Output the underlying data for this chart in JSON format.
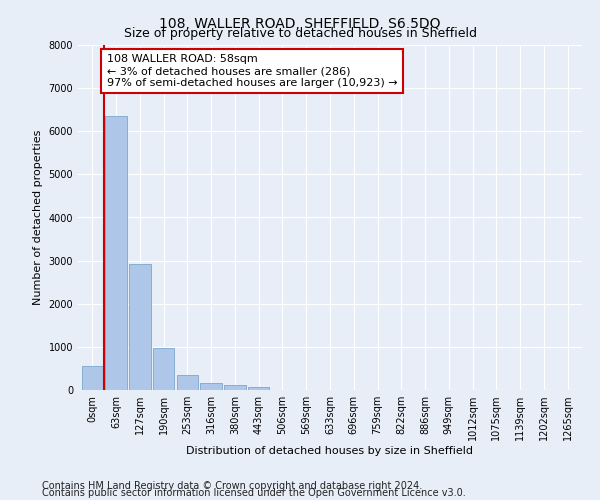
{
  "title": "108, WALLER ROAD, SHEFFIELD, S6 5DQ",
  "subtitle": "Size of property relative to detached houses in Sheffield",
  "xlabel": "Distribution of detached houses by size in Sheffield",
  "ylabel": "Number of detached properties",
  "footer_line1": "Contains HM Land Registry data © Crown copyright and database right 2024.",
  "footer_line2": "Contains public sector information licensed under the Open Government Licence v3.0.",
  "bar_categories": [
    "0sqm",
    "63sqm",
    "127sqm",
    "190sqm",
    "253sqm",
    "316sqm",
    "380sqm",
    "443sqm",
    "506sqm",
    "569sqm",
    "633sqm",
    "696sqm",
    "759sqm",
    "822sqm",
    "886sqm",
    "949sqm",
    "1012sqm",
    "1075sqm",
    "1139sqm",
    "1202sqm",
    "1265sqm"
  ],
  "bar_values": [
    550,
    6350,
    2920,
    970,
    340,
    165,
    110,
    75,
    0,
    0,
    0,
    0,
    0,
    0,
    0,
    0,
    0,
    0,
    0,
    0,
    0
  ],
  "bar_color": "#aec6e8",
  "bar_edge_color": "#7ba7cf",
  "ylim": [
    0,
    8000
  ],
  "annotation_text": "108 WALLER ROAD: 58sqm\n← 3% of detached houses are smaller (286)\n97% of semi-detached houses are larger (10,923) →",
  "vline_x": 0.5,
  "vline_color": "#cc0000",
  "box_facecolor": "#ffffff",
  "box_edgecolor": "#cc0000",
  "background_color": "#e8eef8",
  "grid_color": "#ffffff",
  "title_fontsize": 10,
  "subtitle_fontsize": 9,
  "axis_label_fontsize": 8,
  "tick_fontsize": 7,
  "annotation_fontsize": 8,
  "footer_fontsize": 7
}
